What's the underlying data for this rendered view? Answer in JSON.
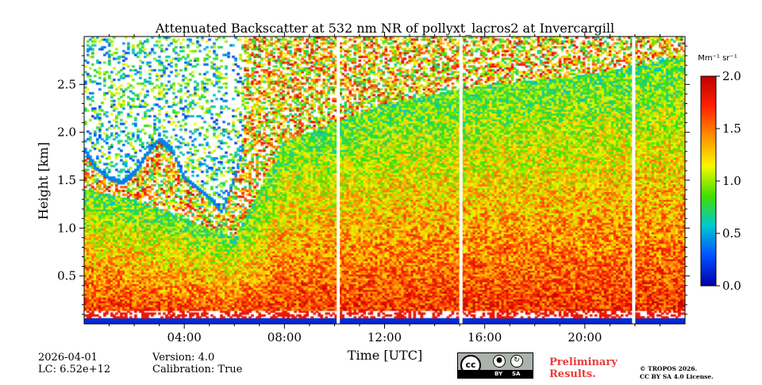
{
  "chart_data": {
    "type": "heatmap",
    "title": "Attenuated Backscatter at 532 nm NR of pollyxt_lacros2 at Invercargill",
    "xlabel": "Time [UTC]",
    "ylabel": "Height [km]",
    "xlim_hours": [
      0,
      24
    ],
    "ylim_km": [
      0,
      3.0
    ],
    "x_ticks": [
      {
        "value": 4,
        "label": "04:00"
      },
      {
        "value": 8,
        "label": "08:00"
      },
      {
        "value": 12,
        "label": "12:00"
      },
      {
        "value": 16,
        "label": "16:00"
      },
      {
        "value": 20,
        "label": "20:00"
      }
    ],
    "y_ticks": [
      {
        "value": 0.5,
        "label": "0.5"
      },
      {
        "value": 1.0,
        "label": "1.0"
      },
      {
        "value": 1.5,
        "label": "1.5"
      },
      {
        "value": 2.0,
        "label": "2.0"
      },
      {
        "value": 2.5,
        "label": "2.5"
      }
    ],
    "colorbar": {
      "unit": "Mm⁻¹ sr⁻¹",
      "range": [
        0.0,
        2.0
      ],
      "ticks": [
        {
          "value": 0.0,
          "label": "0.0"
        },
        {
          "value": 0.5,
          "label": "0.5"
        },
        {
          "value": 1.0,
          "label": "1.0"
        },
        {
          "value": 1.5,
          "label": "1.5"
        },
        {
          "value": 2.0,
          "label": "2.0"
        }
      ],
      "colormap": [
        "#0000a8",
        "#0050ff",
        "#00c8d0",
        "#40e000",
        "#f8f800",
        "#ff9000",
        "#ff2000",
        "#c00000"
      ]
    },
    "data_gaps_hours": [
      10.15,
      15.05,
      21.95
    ],
    "cloud_profile": [
      {
        "t": 0.0,
        "base_km": 1.8
      },
      {
        "t": 0.5,
        "base_km": 1.6
      },
      {
        "t": 1.0,
        "base_km": 1.5
      },
      {
        "t": 1.5,
        "base_km": 1.45
      },
      {
        "t": 2.0,
        "base_km": 1.55
      },
      {
        "t": 2.5,
        "base_km": 1.75
      },
      {
        "t": 3.0,
        "base_km": 1.9
      },
      {
        "t": 3.5,
        "base_km": 1.8
      },
      {
        "t": 4.0,
        "base_km": 1.5
      },
      {
        "t": 4.5,
        "base_km": 1.4
      },
      {
        "t": 5.0,
        "base_km": 1.3
      },
      {
        "t": 5.5,
        "base_km": 1.15
      },
      {
        "t": 6.0,
        "base_km": 1.5
      },
      {
        "t": 6.4,
        "base_km": 1.85
      }
    ],
    "aerosol_top_km": [
      {
        "t": 0.0,
        "h": 1.4
      },
      {
        "t": 2.0,
        "h": 1.3
      },
      {
        "t": 4.0,
        "h": 1.1
      },
      {
        "t": 6.0,
        "h": 0.9
      },
      {
        "t": 8.0,
        "h": 1.9
      },
      {
        "t": 12.0,
        "h": 2.3
      },
      {
        "t": 16.0,
        "h": 2.5
      },
      {
        "t": 20.0,
        "h": 2.6
      },
      {
        "t": 24.0,
        "h": 2.8
      }
    ]
  },
  "footer": {
    "date": "2026-04-01",
    "lc": "LC: 6.52e+12",
    "version": "Version: 4.0",
    "calibration": "Calibration: True",
    "preliminary_line1": "Preliminary",
    "preliminary_line2": "Results.",
    "copyright_line1": "© TROPOS 2026.",
    "copyright_line2": "CC BY SA 4.0 License.",
    "license_badge": {
      "cc": "cc",
      "by": "BY",
      "sa": "SA"
    }
  }
}
